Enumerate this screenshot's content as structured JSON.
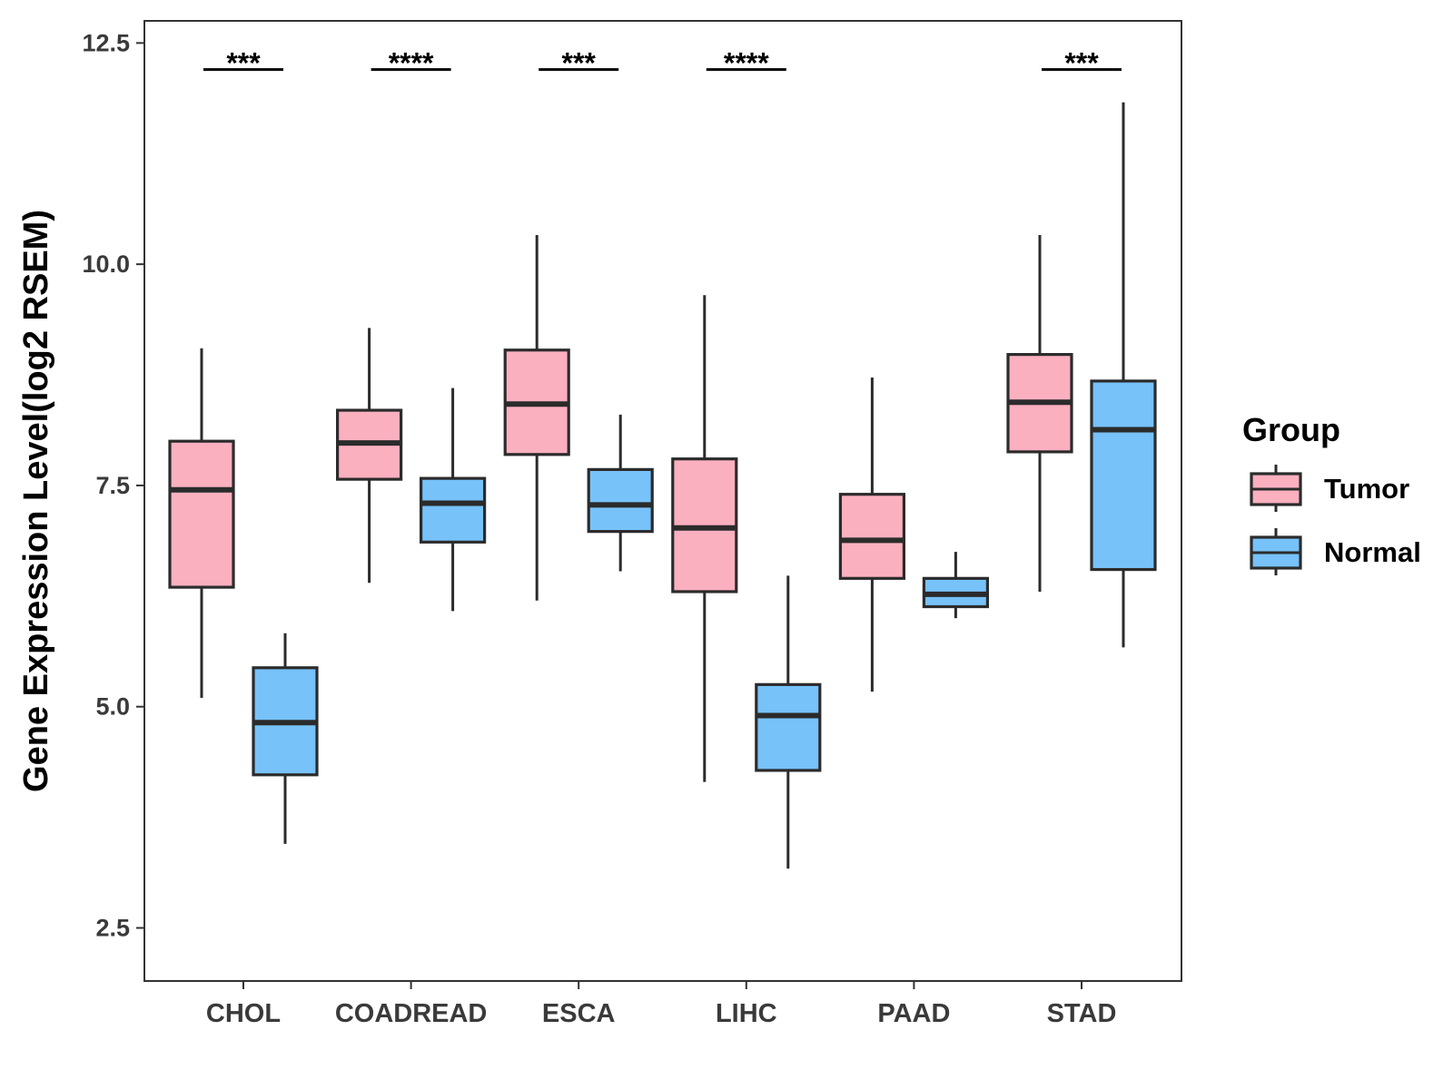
{
  "chart_data": {
    "type": "boxplot",
    "title": "",
    "xlabel": "",
    "ylabel": "Gene Expression Level(log2 RSEM)",
    "ylim": [
      1.9,
      12.75
    ],
    "yticks": [
      2.5,
      5.0,
      7.5,
      10.0,
      12.5
    ],
    "ytick_labels": [
      "2.5",
      "5.0",
      "7.5",
      "10.0",
      "12.5"
    ],
    "categories": [
      "CHOL",
      "COADREAD",
      "ESCA",
      "LIHC",
      "PAAD",
      "STAD"
    ],
    "series": [
      {
        "name": "Tumor",
        "color": "#FBB0C0",
        "boxes": [
          {
            "whisker_low": 5.1,
            "q1": 6.35,
            "median": 7.45,
            "q3": 8.0,
            "whisker_high": 9.05
          },
          {
            "whisker_low": 6.4,
            "q1": 7.57,
            "median": 7.98,
            "q3": 8.35,
            "whisker_high": 9.28
          },
          {
            "whisker_low": 6.2,
            "q1": 7.85,
            "median": 8.42,
            "q3": 9.03,
            "whisker_high": 10.33
          },
          {
            "whisker_low": 4.15,
            "q1": 6.3,
            "median": 7.02,
            "q3": 7.8,
            "whisker_high": 9.65
          },
          {
            "whisker_low": 5.17,
            "q1": 6.45,
            "median": 6.88,
            "q3": 7.4,
            "whisker_high": 8.72
          },
          {
            "whisker_low": 6.3,
            "q1": 7.88,
            "median": 8.44,
            "q3": 8.98,
            "whisker_high": 10.33
          }
        ]
      },
      {
        "name": "Normal",
        "color": "#77C2F9",
        "boxes": [
          {
            "whisker_low": 3.45,
            "q1": 4.23,
            "median": 4.82,
            "q3": 5.44,
            "whisker_high": 5.83
          },
          {
            "whisker_low": 6.08,
            "q1": 6.86,
            "median": 7.3,
            "q3": 7.58,
            "whisker_high": 8.6
          },
          {
            "whisker_low": 6.53,
            "q1": 6.98,
            "median": 7.28,
            "q3": 7.68,
            "whisker_high": 8.3
          },
          {
            "whisker_low": 3.17,
            "q1": 4.28,
            "median": 4.9,
            "q3": 5.25,
            "whisker_high": 6.48
          },
          {
            "whisker_low": 6.0,
            "q1": 6.13,
            "median": 6.27,
            "q3": 6.45,
            "whisker_high": 6.75
          },
          {
            "whisker_low": 5.67,
            "q1": 6.55,
            "median": 8.13,
            "q3": 8.68,
            "whisker_high": 11.83
          }
        ]
      }
    ],
    "significance": [
      {
        "category": "CHOL",
        "label": "***"
      },
      {
        "category": "COADREAD",
        "label": "****"
      },
      {
        "category": "ESCA",
        "label": "***"
      },
      {
        "category": "LIHC",
        "label": "****"
      },
      {
        "category": "PAAD",
        "label": ""
      },
      {
        "category": "STAD",
        "label": "***"
      }
    ],
    "significance_level": 12.2,
    "legend": {
      "title": "Group",
      "placement": "right",
      "entries": [
        "Tumor",
        "Normal"
      ]
    },
    "grid": false
  }
}
